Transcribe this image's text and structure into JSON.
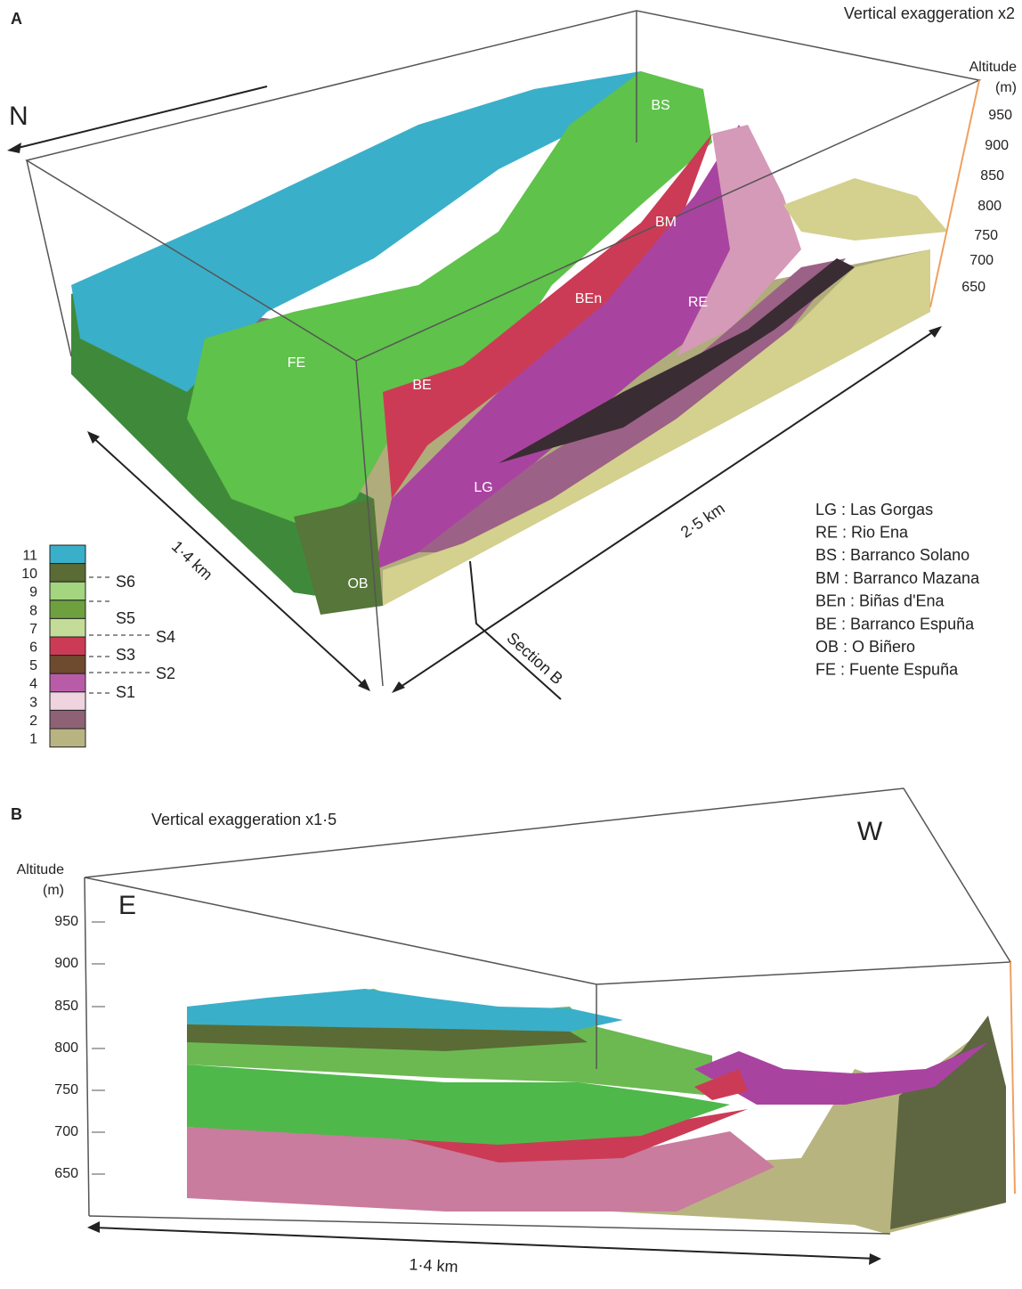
{
  "panel_a": {
    "label": "A",
    "exaggeration": "Vertical exaggeration x2",
    "north": "N",
    "altitude_title": "Altitude",
    "altitude_unit": "(m)",
    "altitude_ticks": [
      950,
      900,
      850,
      800,
      750,
      700,
      650
    ],
    "sites": [
      "FE",
      "BE",
      "LG",
      "OB",
      "BEn",
      "RE",
      "BM",
      "BS"
    ],
    "width": "1·4 km",
    "length": "2·5 km",
    "section": "Section B",
    "legend": {
      "units": [
        {
          "label": "11",
          "color": "#3aafca"
        },
        {
          "label": "10",
          "color": "#5a6b35"
        },
        {
          "label": "9",
          "color": "#a3d67f"
        },
        {
          "label": "8",
          "color": "#6ea040"
        },
        {
          "label": "7",
          "color": "#c3dc98"
        },
        {
          "label": "6",
          "color": "#cc3b55"
        },
        {
          "label": "5",
          "color": "#6e4a2f"
        },
        {
          "label": "4",
          "color": "#b85ca8"
        },
        {
          "label": "3",
          "color": "#efd3df"
        },
        {
          "label": "2",
          "color": "#8e6274"
        },
        {
          "label": "1",
          "color": "#b7b482"
        }
      ],
      "boundaries": [
        "S6",
        "S5",
        "S4",
        "S3",
        "S2",
        "S1"
      ]
    },
    "key": [
      "LG : Las Gorgas",
      "RE : Rio Ena",
      "BS : Barranco Solano",
      "BM : Barranco Mazana",
      "BEn : Biñas d'Ena",
      "BE : Barranco Espuña",
      "OB : O Biñero",
      "FE : Fuente Espuña"
    ]
  },
  "panel_b": {
    "label": "B",
    "exaggeration": "Vertical exaggeration x1·5",
    "east": "E",
    "west": "W",
    "altitude_title": "Altitude",
    "altitude_unit": "(m)",
    "altitude_ticks": [
      950,
      900,
      850,
      800,
      750,
      700,
      650
    ],
    "width": "1·4 km"
  }
}
